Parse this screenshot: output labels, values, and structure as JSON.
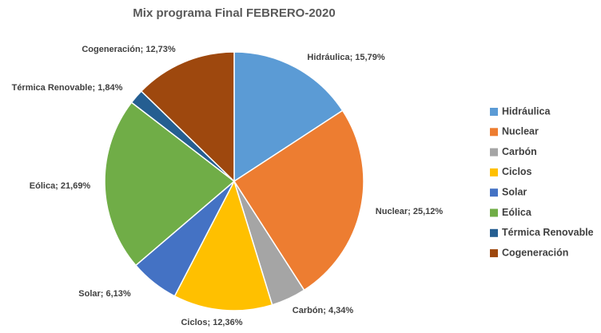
{
  "chart_data": {
    "type": "pie",
    "title": "Mix programa Final FEBRERO-2020",
    "categories": [
      "Hidráulica",
      "Nuclear",
      "Carbón",
      "Ciclos",
      "Solar",
      "Eólica",
      "Térmica Renovable",
      "Cogeneración"
    ],
    "values": [
      15.79,
      25.12,
      4.34,
      12.36,
      6.13,
      21.69,
      1.84,
      12.73
    ],
    "value_labels": [
      "Hidráulica; 15,79%",
      "Nuclear; 25,12%",
      "Carbón; 4,34%",
      "Ciclos; 12,36%",
      "Solar; 6,13%",
      "Eólica; 21,69%",
      "Térmica Renovable; 1,84%",
      "Cogeneración; 12,73%"
    ],
    "colors": [
      "#5b9bd5",
      "#ed7d31",
      "#a5a5a5",
      "#ffc000",
      "#4472c4",
      "#70ad47",
      "#255e91",
      "#9e480e"
    ],
    "legend": "right"
  }
}
